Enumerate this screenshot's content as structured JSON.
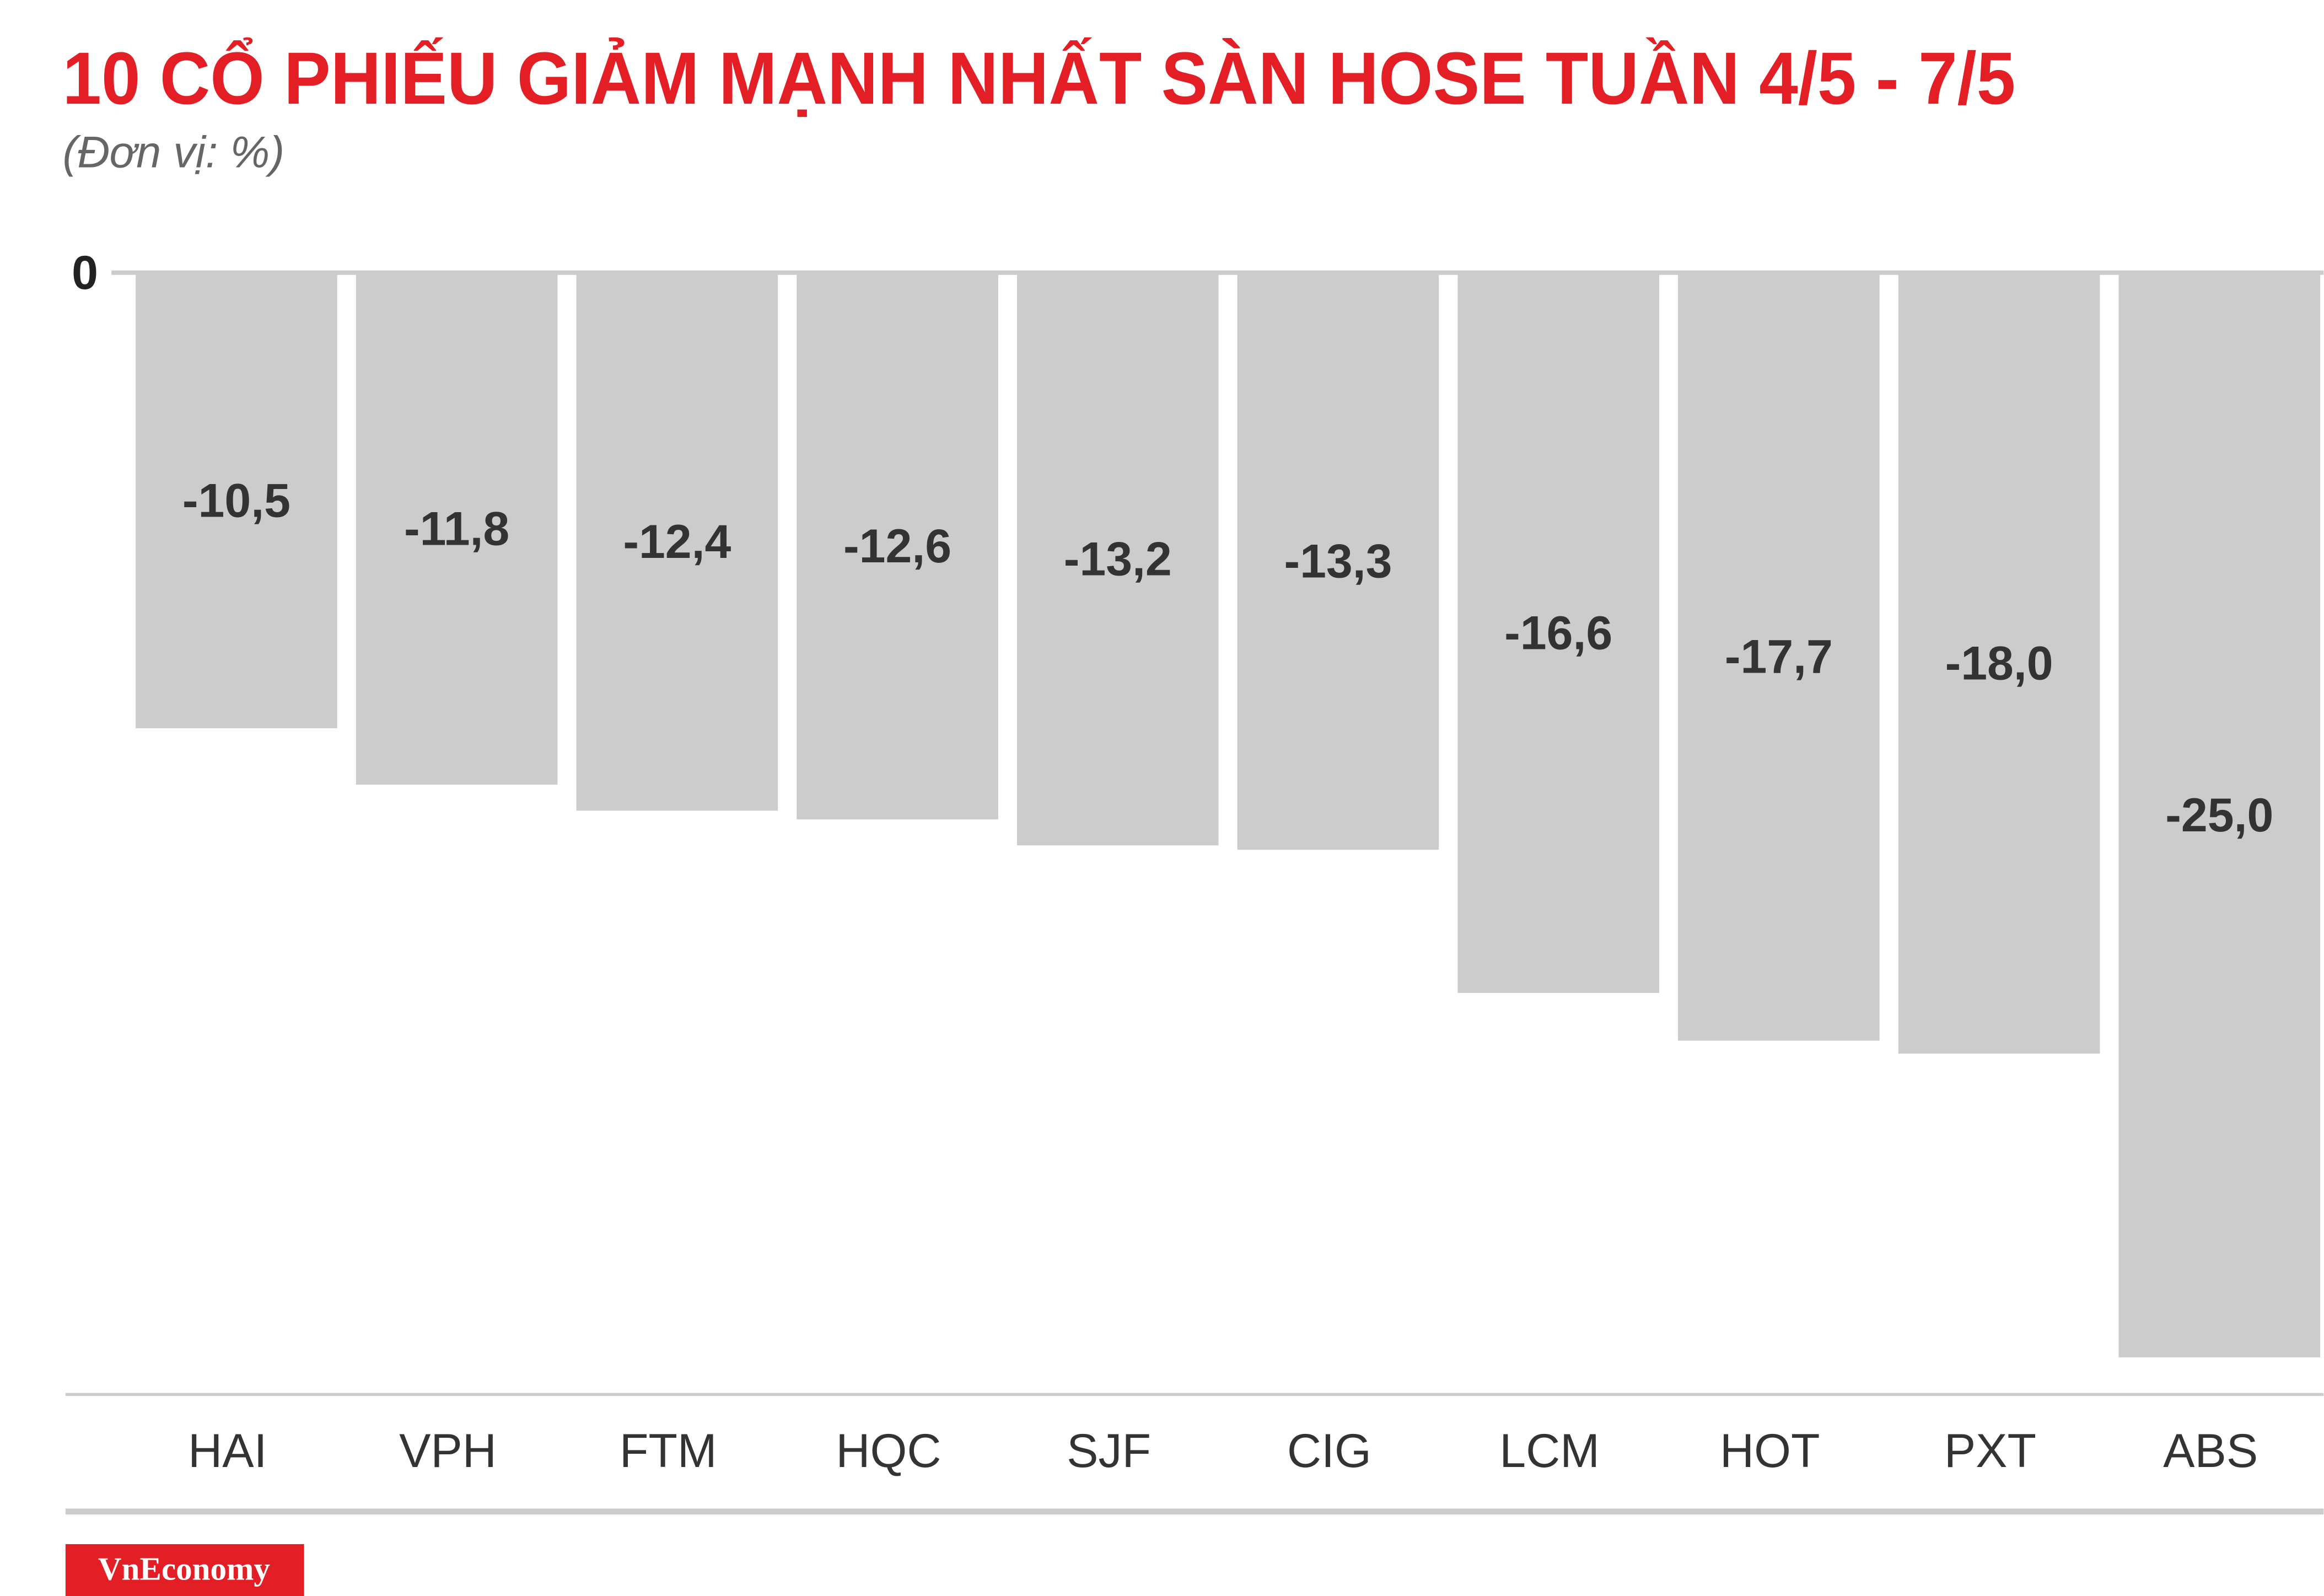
{
  "chart_data": {
    "type": "bar",
    "title": "10 CỔ PHIẾU GIẢM MẠNH NHẤT SÀN HOSE TUẦN 4/5 - 7/5",
    "subtitle": "(Đơn vị: %)",
    "categories": [
      "HAI",
      "VPH",
      "FTM",
      "HQC",
      "SJF",
      "CIG",
      "LCM",
      "HOT",
      "PXT",
      "ABS"
    ],
    "values": [
      -10.5,
      -11.8,
      -12.4,
      -12.6,
      -13.2,
      -13.3,
      -16.6,
      -17.7,
      -18.0,
      -25.0
    ],
    "value_labels": [
      "-10,5",
      "-11,8",
      "-12,4",
      "-12,6",
      "-13,2",
      "-13,3",
      "-16,6",
      "-17,7",
      "-18,0",
      "-25,0"
    ],
    "color": "#cccccc",
    "ylim": [
      -25,
      0
    ],
    "yticks": [
      0
    ],
    "source": "VnEconomy"
  }
}
